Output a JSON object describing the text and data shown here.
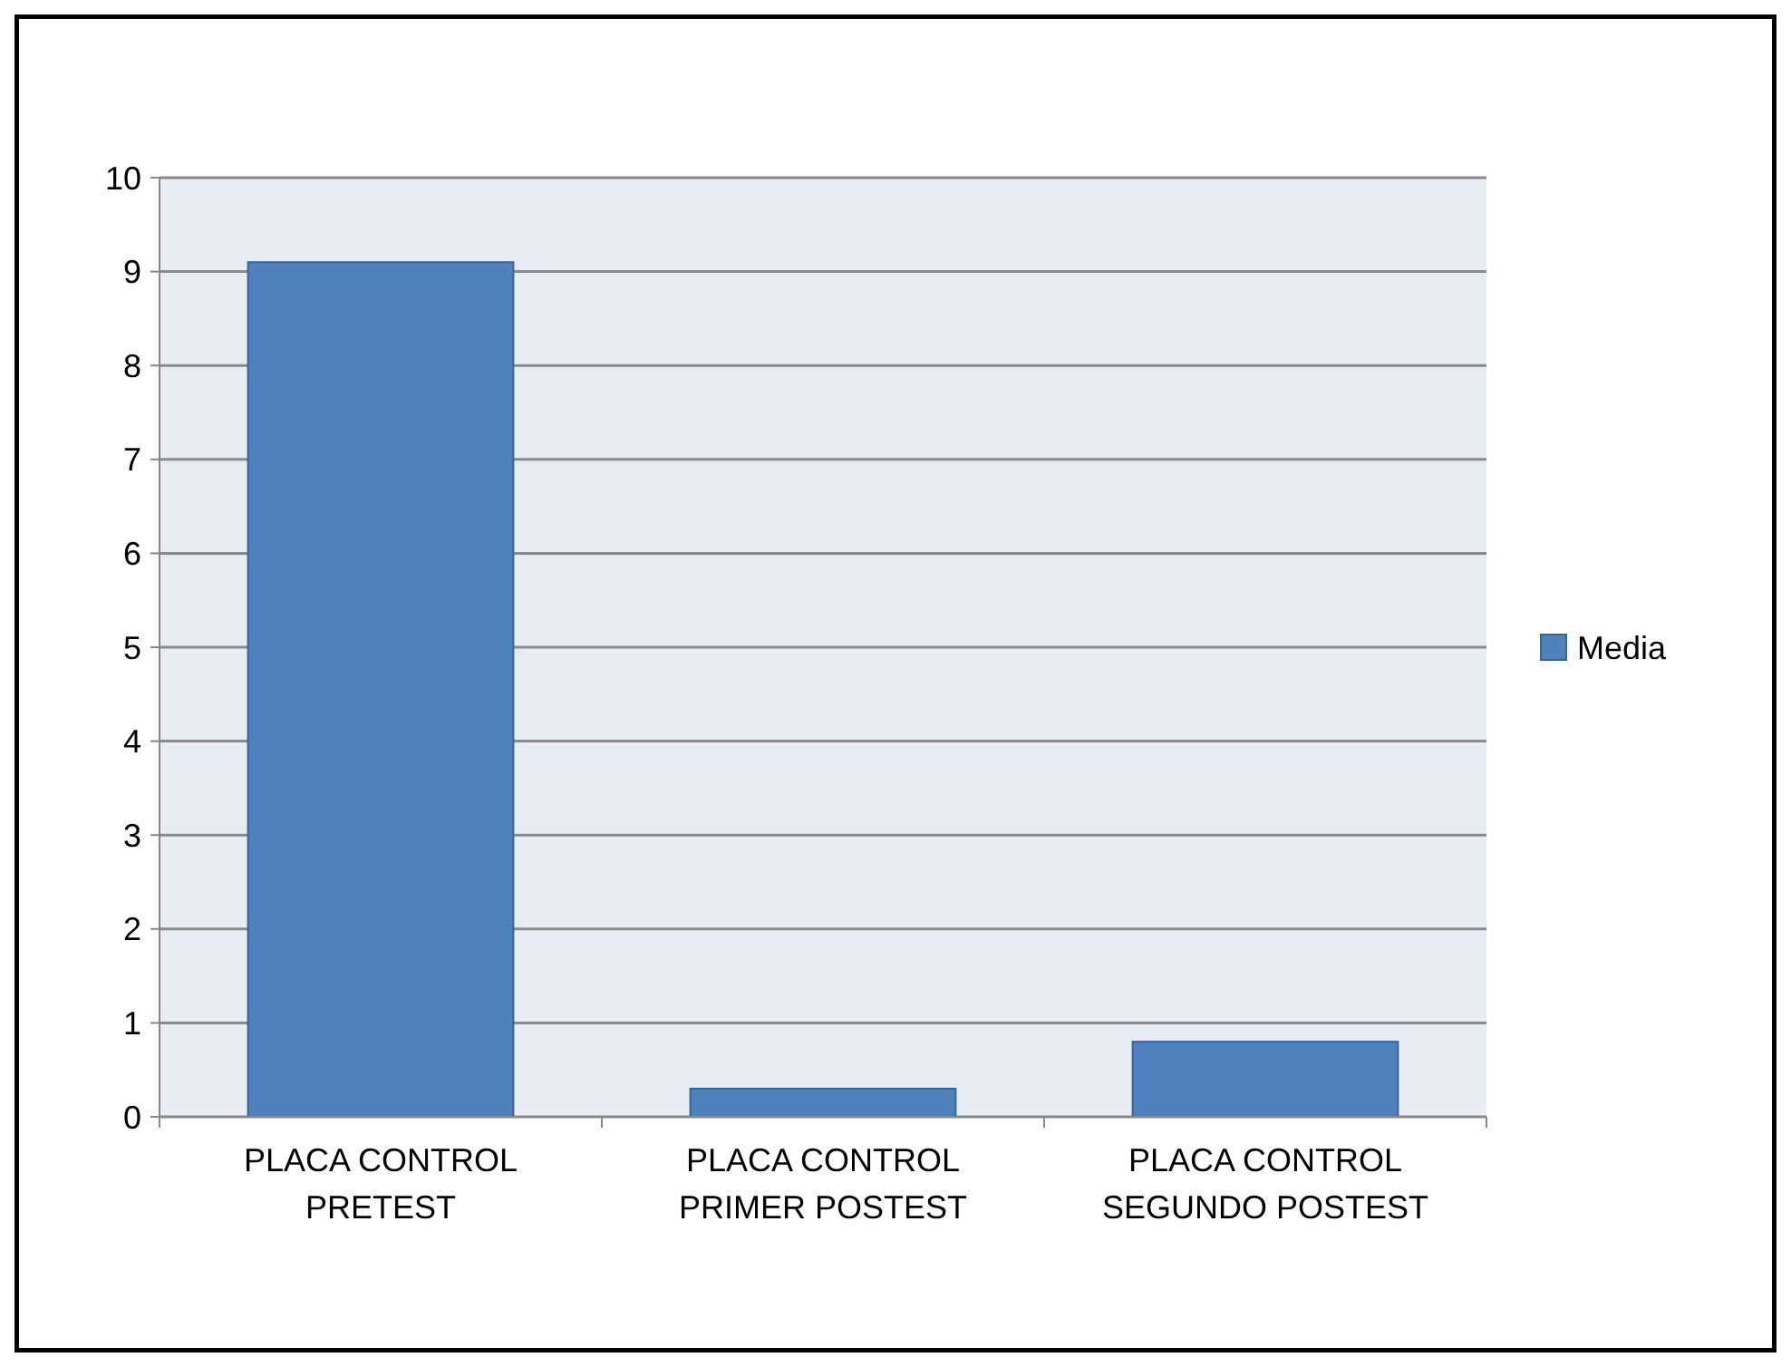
{
  "chart_data": {
    "type": "bar",
    "categories": [
      "PLACA  CONTROL PRETEST",
      "PLACA  CONTROL PRIMER POSTEST",
      "PLACA CONTROL SEGUNDO POSTEST"
    ],
    "series": [
      {
        "name": "Media",
        "color": "#4f81bd",
        "values": [
          9.1,
          0.3,
          0.8
        ]
      }
    ],
    "ylim": [
      0,
      10
    ],
    "yticks": [
      0,
      1,
      2,
      3,
      4,
      5,
      6,
      7,
      8,
      9,
      10
    ],
    "grid": "y",
    "legend": "right"
  }
}
